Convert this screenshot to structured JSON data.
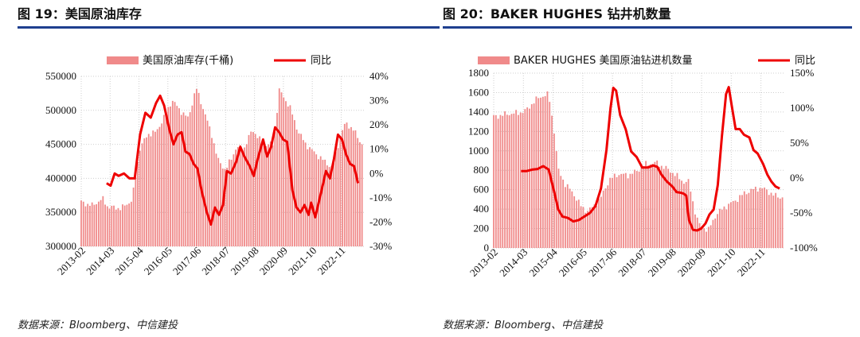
{
  "panels": [
    {
      "title": "图 19：美国原油库存",
      "source": "数据来源：Bloomberg、中信建投"
    },
    {
      "title": "图 20：BAKER HUGHES 钻井机数量",
      "source": "数据来源：Bloomberg、中信建投"
    }
  ],
  "colors": {
    "bar": "#f08a8a",
    "line": "#ee0000",
    "rule": "#1f3f8f",
    "grid": "#cfcfcf"
  },
  "chart_data": [
    {
      "type": "bar",
      "title": "美国原油库存",
      "legend": {
        "bar": "美国原油库存(千桶)",
        "line": "同比",
        "placement": "top"
      },
      "categories": [
        "2013-02",
        "2014-03",
        "2015-04",
        "2016-05",
        "2017-06",
        "2018-07",
        "2019-08",
        "2020-09",
        "2021-10",
        "2022-11"
      ],
      "ylim_left": [
        300000,
        550000
      ],
      "yticks_left": [
        "300000",
        "350000",
        "400000",
        "450000",
        "500000",
        "550000"
      ],
      "ylim_right": [
        -30,
        40
      ],
      "yticks_right": [
        "-30%",
        "-20%",
        "-10%",
        "0%",
        "10%",
        "20%",
        "30%",
        "40%"
      ],
      "x_start": 2013.0,
      "x_end": 2023.6,
      "series": [
        {
          "name": "美国原油库存(千桶)",
          "axis": "left",
          "kind": "bar",
          "points": [
            [
              2013.0,
              365000
            ],
            [
              2013.4,
              360000
            ],
            [
              2013.8,
              370000
            ],
            [
              2014.0,
              358000
            ],
            [
              2014.5,
              356000
            ],
            [
              2014.9,
              368000
            ],
            [
              2015.2,
              445000
            ],
            [
              2015.5,
              465000
            ],
            [
              2015.8,
              468000
            ],
            [
              2016.1,
              490000
            ],
            [
              2016.4,
              515000
            ],
            [
              2016.7,
              500000
            ],
            [
              2017.0,
              488000
            ],
            [
              2017.3,
              533000
            ],
            [
              2017.5,
              510000
            ],
            [
              2017.9,
              462000
            ],
            [
              2018.1,
              428000
            ],
            [
              2018.4,
              412000
            ],
            [
              2018.8,
              445000
            ],
            [
              2019.1,
              445000
            ],
            [
              2019.4,
              472000
            ],
            [
              2019.8,
              450000
            ],
            [
              2020.2,
              450000
            ],
            [
              2020.4,
              530000
            ],
            [
              2020.8,
              505000
            ],
            [
              2021.1,
              470000
            ],
            [
              2021.4,
              450000
            ],
            [
              2021.8,
              435000
            ],
            [
              2022.1,
              425000
            ],
            [
              2022.4,
              415000
            ],
            [
              2022.7,
              465000
            ],
            [
              2022.9,
              482000
            ],
            [
              2023.2,
              470000
            ],
            [
              2023.5,
              450000
            ]
          ]
        },
        {
          "name": "同比",
          "axis": "right",
          "kind": "line",
          "points": [
            [
              2013.95,
              -4
            ],
            [
              2014.1,
              -5
            ],
            [
              2014.25,
              0
            ],
            [
              2014.4,
              -1
            ],
            [
              2014.6,
              0
            ],
            [
              2014.8,
              -2
            ],
            [
              2015.0,
              -2
            ],
            [
              2015.2,
              16
            ],
            [
              2015.4,
              25
            ],
            [
              2015.6,
              23
            ],
            [
              2015.8,
              29
            ],
            [
              2015.95,
              32
            ],
            [
              2016.1,
              28
            ],
            [
              2016.3,
              18
            ],
            [
              2016.45,
              12
            ],
            [
              2016.6,
              16
            ],
            [
              2016.75,
              17
            ],
            [
              2016.9,
              9
            ],
            [
              2017.05,
              8
            ],
            [
              2017.2,
              4
            ],
            [
              2017.35,
              2
            ],
            [
              2017.5,
              -7
            ],
            [
              2017.7,
              -16
            ],
            [
              2017.85,
              -21
            ],
            [
              2018.0,
              -14
            ],
            [
              2018.15,
              -17
            ],
            [
              2018.3,
              -13
            ],
            [
              2018.45,
              1
            ],
            [
              2018.6,
              0
            ],
            [
              2018.8,
              5
            ],
            [
              2018.95,
              11
            ],
            [
              2019.1,
              7
            ],
            [
              2019.3,
              3
            ],
            [
              2019.45,
              -1
            ],
            [
              2019.6,
              6
            ],
            [
              2019.8,
              14
            ],
            [
              2019.95,
              7
            ],
            [
              2020.1,
              11
            ],
            [
              2020.25,
              19
            ],
            [
              2020.4,
              17
            ],
            [
              2020.55,
              14
            ],
            [
              2020.7,
              13
            ],
            [
              2020.9,
              -7
            ],
            [
              2021.05,
              -14
            ],
            [
              2021.2,
              -16
            ],
            [
              2021.35,
              -13
            ],
            [
              2021.5,
              -17
            ],
            [
              2021.6,
              -12
            ],
            [
              2021.75,
              -18
            ],
            [
              2021.9,
              -11
            ],
            [
              2022.05,
              -4
            ],
            [
              2022.15,
              1
            ],
            [
              2022.3,
              -2
            ],
            [
              2022.45,
              6
            ],
            [
              2022.6,
              16
            ],
            [
              2022.75,
              14
            ],
            [
              2022.9,
              8
            ],
            [
              2023.05,
              4
            ],
            [
              2023.2,
              3
            ],
            [
              2023.35,
              -4
            ]
          ]
        }
      ]
    },
    {
      "type": "bar",
      "title": "BAKER HUGHES 钻井机数量",
      "legend": {
        "bar": "BAKER HUGHES 美国原油钻进机数量",
        "line": "同比",
        "placement": "top"
      },
      "categories": [
        "2013-02",
        "2014-03",
        "2015-04",
        "2016-05",
        "2017-06",
        "2018-07",
        "2019-08",
        "2020-09",
        "2021-10",
        "2022-11"
      ],
      "ylim_left": [
        0,
        1800
      ],
      "yticks_left": [
        "0",
        "200",
        "400",
        "600",
        "800",
        "1000",
        "1200",
        "1400",
        "1600",
        "1800"
      ],
      "ylim_right": [
        -100,
        150
      ],
      "yticks_right": [
        "-100%",
        "-50%",
        "0%",
        "50%",
        "100%",
        "150%"
      ],
      "x_start": 2013.0,
      "x_end": 2023.6,
      "series": [
        {
          "name": "BAKER HUGHES 美国原油钻进机数量",
          "axis": "left",
          "kind": "bar",
          "points": [
            [
              2013.0,
              1350
            ],
            [
              2013.5,
              1380
            ],
            [
              2013.9,
              1390
            ],
            [
              2014.2,
              1420
            ],
            [
              2014.5,
              1520
            ],
            [
              2014.8,
              1570
            ],
            [
              2015.0,
              1580
            ],
            [
              2015.2,
              1200
            ],
            [
              2015.35,
              800
            ],
            [
              2015.6,
              660
            ],
            [
              2015.9,
              560
            ],
            [
              2016.2,
              420
            ],
            [
              2016.4,
              380
            ],
            [
              2016.6,
              420
            ],
            [
              2016.9,
              520
            ],
            [
              2017.2,
              700
            ],
            [
              2017.5,
              760
            ],
            [
              2017.9,
              750
            ],
            [
              2018.2,
              790
            ],
            [
              2018.5,
              860
            ],
            [
              2018.9,
              880
            ],
            [
              2019.2,
              830
            ],
            [
              2019.5,
              780
            ],
            [
              2019.9,
              680
            ],
            [
              2020.1,
              680
            ],
            [
              2020.3,
              400
            ],
            [
              2020.45,
              250
            ],
            [
              2020.8,
              180
            ],
            [
              2021.1,
              350
            ],
            [
              2021.4,
              420
            ],
            [
              2021.8,
              490
            ],
            [
              2022.1,
              560
            ],
            [
              2022.4,
              600
            ],
            [
              2022.7,
              620
            ],
            [
              2022.9,
              600
            ],
            [
              2023.2,
              540
            ],
            [
              2023.5,
              520
            ]
          ]
        },
        {
          "name": "同比",
          "axis": "right",
          "kind": "line",
          "points": [
            [
              2014.0,
              10
            ],
            [
              2014.2,
              10
            ],
            [
              2014.4,
              12
            ],
            [
              2014.6,
              13
            ],
            [
              2014.8,
              17
            ],
            [
              2015.0,
              12
            ],
            [
              2015.2,
              -20
            ],
            [
              2015.35,
              -45
            ],
            [
              2015.5,
              -55
            ],
            [
              2015.7,
              -57
            ],
            [
              2015.9,
              -62
            ],
            [
              2016.1,
              -60
            ],
            [
              2016.3,
              -55
            ],
            [
              2016.5,
              -50
            ],
            [
              2016.7,
              -40
            ],
            [
              2016.9,
              -15
            ],
            [
              2017.1,
              40
            ],
            [
              2017.25,
              100
            ],
            [
              2017.35,
              129
            ],
            [
              2017.45,
              125
            ],
            [
              2017.6,
              90
            ],
            [
              2017.8,
              70
            ],
            [
              2018.0,
              38
            ],
            [
              2018.2,
              30
            ],
            [
              2018.4,
              15
            ],
            [
              2018.6,
              15
            ],
            [
              2018.8,
              18
            ],
            [
              2018.95,
              16
            ],
            [
              2019.1,
              5
            ],
            [
              2019.3,
              -5
            ],
            [
              2019.5,
              -12
            ],
            [
              2019.65,
              -20
            ],
            [
              2019.8,
              -21
            ],
            [
              2019.9,
              -22
            ],
            [
              2020.0,
              -25
            ],
            [
              2020.1,
              -60
            ],
            [
              2020.25,
              -74
            ],
            [
              2020.4,
              -75
            ],
            [
              2020.55,
              -72
            ],
            [
              2020.7,
              -65
            ],
            [
              2020.85,
              -52
            ],
            [
              2021.0,
              -45
            ],
            [
              2021.15,
              -10
            ],
            [
              2021.3,
              60
            ],
            [
              2021.45,
              120
            ],
            [
              2021.55,
              130
            ],
            [
              2021.65,
              105
            ],
            [
              2021.8,
              70
            ],
            [
              2021.95,
              70
            ],
            [
              2022.1,
              62
            ],
            [
              2022.3,
              58
            ],
            [
              2022.45,
              40
            ],
            [
              2022.6,
              35
            ],
            [
              2022.8,
              20
            ],
            [
              2022.95,
              5
            ],
            [
              2023.1,
              -5
            ],
            [
              2023.25,
              -12
            ],
            [
              2023.4,
              -15
            ]
          ]
        }
      ]
    }
  ]
}
